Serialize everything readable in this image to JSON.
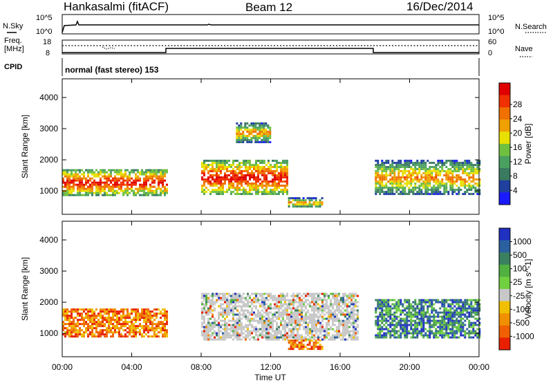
{
  "header": {
    "station": "Hankasalmi (fitACF)",
    "beam": "Beam 12",
    "date": "16/Dec/2014"
  },
  "status_panels": {
    "nsky": {
      "label": "N.Sky",
      "left_ticks": [
        "10^5",
        "10^0"
      ],
      "right_label": "N.Search",
      "right_ticks": [
        "10^5",
        "10^0"
      ]
    },
    "freq": {
      "label_lines": [
        "Freq.",
        "[MHz]"
      ],
      "left_ticks": [
        "18",
        "8"
      ],
      "right_label": "Nave",
      "right_ticks": [
        "60",
        "0"
      ]
    },
    "cpid": {
      "label": "CPID",
      "mode": "normal (fast stereo) 153"
    }
  },
  "chart_data": [
    {
      "type": "heatmap",
      "panel": "power",
      "ylabel": "Slant Range [km]",
      "xlabel": "",
      "x_ticks": [
        "00:00",
        "04:00",
        "08:00",
        "12:00",
        "16:00",
        "20:00",
        "00:00"
      ],
      "y_ticks": [
        1000,
        2000,
        3000,
        4000
      ],
      "ylim": [
        250,
        4600
      ],
      "colorbar": {
        "label": "Power [dB]",
        "ticks": [
          "4",
          "8",
          "12",
          "16",
          "20",
          "24",
          "28"
        ],
        "colors": [
          "#1a1aff",
          "#2040a0",
          "#3a7a60",
          "#4aa060",
          "#70c040",
          "#e8e000",
          "#f0a000",
          "#f07000",
          "#f03000",
          "#e00000"
        ]
      },
      "features": [
        {
          "time_h": [
            0,
            6
          ],
          "range_km": [
            900,
            1700
          ],
          "level": "high"
        },
        {
          "time_h": [
            8,
            13
          ],
          "range_km": [
            900,
            2000
          ],
          "level": "high"
        },
        {
          "time_h": [
            10,
            12
          ],
          "range_km": [
            2600,
            3200
          ],
          "level": "medium"
        },
        {
          "time_h": [
            13,
            15
          ],
          "range_km": [
            500,
            800
          ],
          "level": "medium"
        },
        {
          "time_h": [
            18,
            24
          ],
          "range_km": [
            900,
            2000
          ],
          "level": "medium"
        }
      ]
    },
    {
      "type": "heatmap",
      "panel": "velocity",
      "ylabel": "Slant Range [km]",
      "xlabel": "Time UT",
      "x_ticks": [
        "00:00",
        "04:00",
        "08:00",
        "12:00",
        "16:00",
        "20:00",
        "00:00"
      ],
      "y_ticks": [
        1000,
        2000,
        3000,
        4000
      ],
      "ylim": [
        250,
        4600
      ],
      "colorbar": {
        "label": "Velocity [m s^-1]",
        "ticks": [
          "1000",
          "500",
          "100",
          "25",
          "-25",
          "-100",
          "-500",
          "-1000"
        ],
        "colors": [
          "#2030c0",
          "#2a60a0",
          "#3a8060",
          "#50b040",
          "#70d040",
          "#c8c8c8",
          "#f0c000",
          "#f09000",
          "#f06000",
          "#e82000"
        ]
      },
      "features": [
        {
          "time_h": [
            0,
            6
          ],
          "range_km": [
            900,
            1800
          ],
          "velocity": "negative"
        },
        {
          "time_h": [
            8,
            17
          ],
          "range_km": [
            800,
            2300
          ],
          "velocity": "near-zero"
        },
        {
          "time_h": [
            13,
            15
          ],
          "range_km": [
            500,
            800
          ],
          "velocity": "negative"
        },
        {
          "time_h": [
            18,
            24
          ],
          "range_km": [
            900,
            2100
          ],
          "velocity": "positive"
        }
      ]
    }
  ]
}
